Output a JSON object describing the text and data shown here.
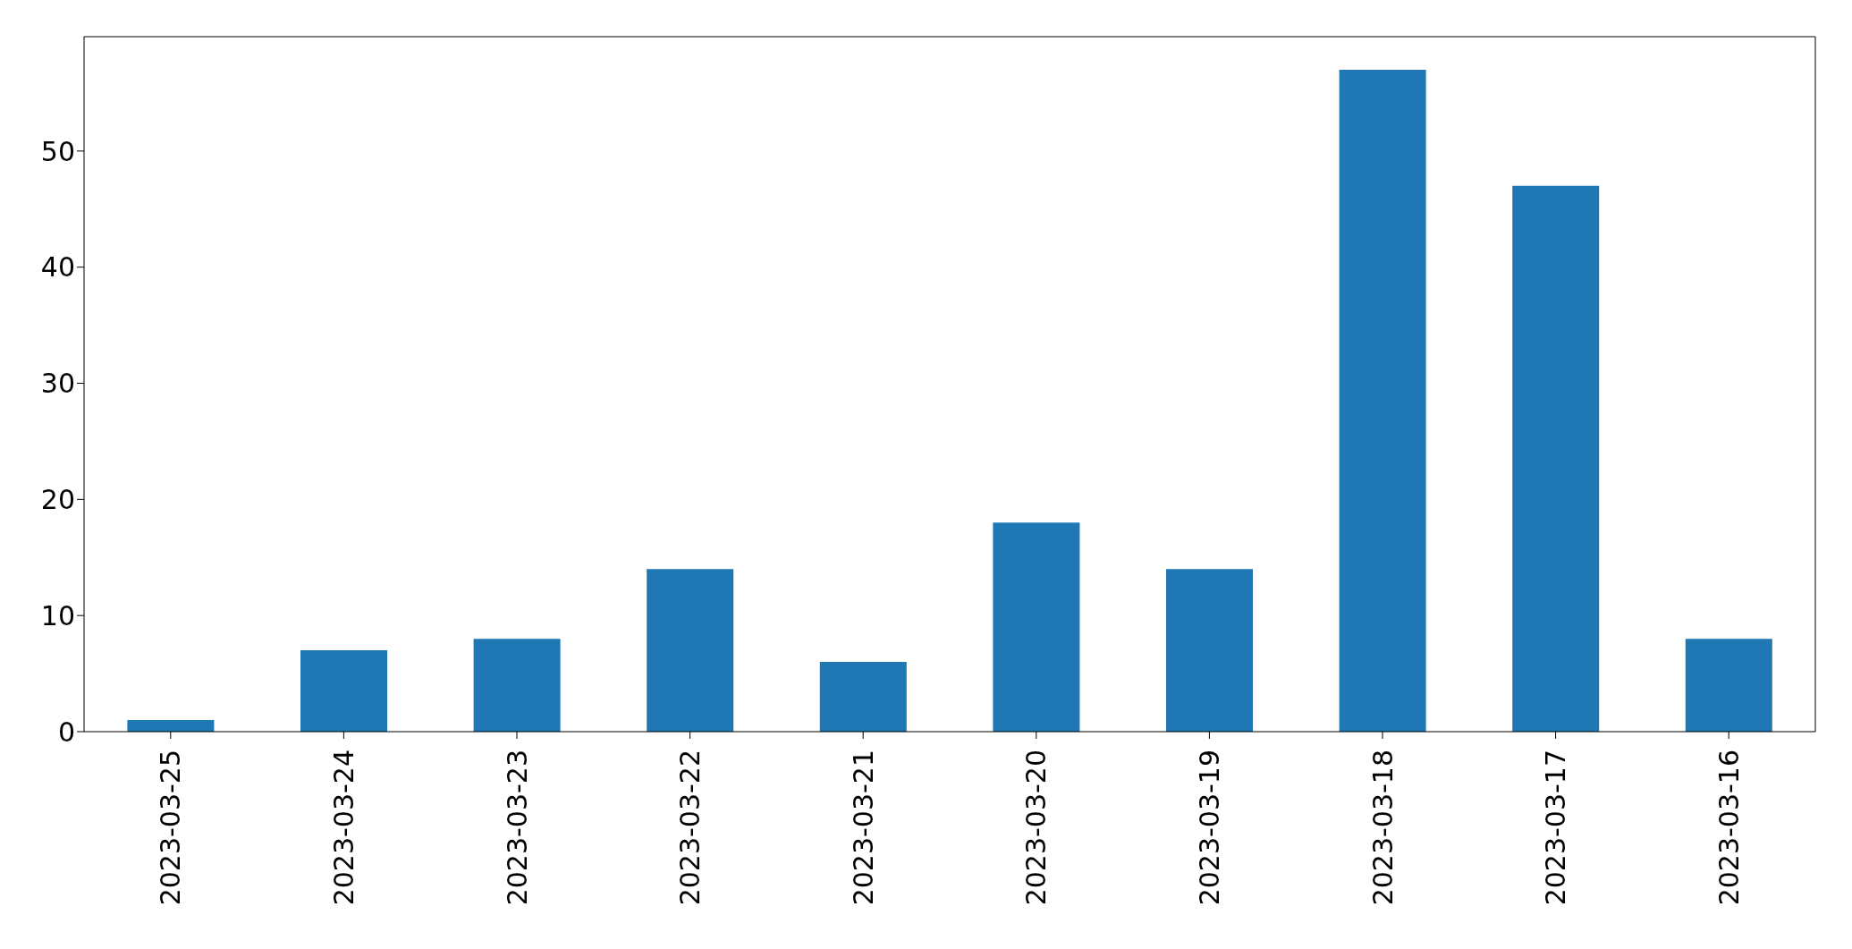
{
  "chart_data": {
    "type": "bar",
    "categories": [
      "2023-03-25",
      "2023-03-24",
      "2023-03-23",
      "2023-03-22",
      "2023-03-21",
      "2023-03-20",
      "2023-03-19",
      "2023-03-18",
      "2023-03-17",
      "2023-03-16"
    ],
    "values": [
      1,
      7,
      8,
      14,
      6,
      18,
      14,
      57,
      47,
      8
    ],
    "color": "#1f77b4",
    "ylim": [
      0,
      59.85
    ],
    "yticks": [
      0,
      10,
      20,
      30,
      40,
      50
    ],
    "grid": false,
    "legend": false
  }
}
